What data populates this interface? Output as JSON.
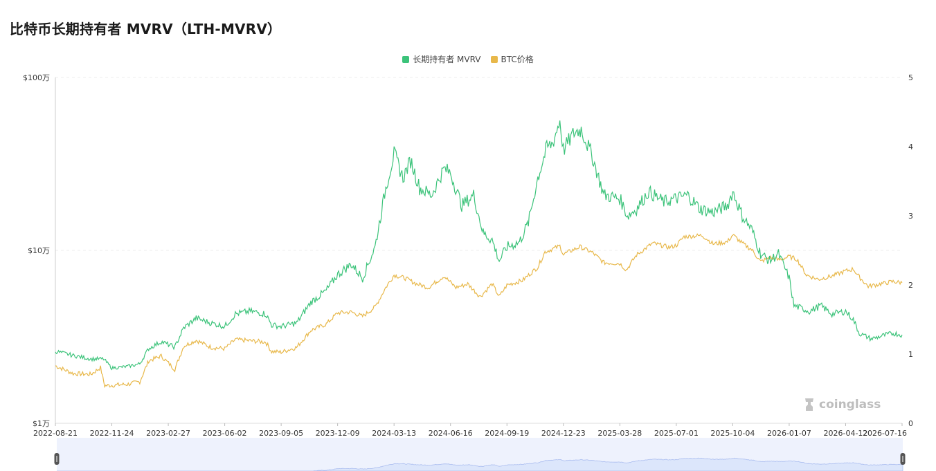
{
  "chart_data": {
    "type": "line",
    "title": "比特币长期持有者 MVRV（LTH-MVRV）",
    "legend_position": "top-center",
    "grid": true,
    "series": [
      {
        "name": "长期持有者 MVRV",
        "axis": "right",
        "color": "#3cc37a",
        "points": [
          [
            "2022-08-21",
            1.04
          ],
          [
            "2022-09-20",
            0.98
          ],
          [
            "2022-10-20",
            0.93
          ],
          [
            "2022-11-10",
            0.93
          ],
          [
            "2022-11-24",
            0.8
          ],
          [
            "2022-12-20",
            0.82
          ],
          [
            "2023-01-10",
            0.86
          ],
          [
            "2023-01-25",
            1.08
          ],
          [
            "2023-02-15",
            1.18
          ],
          [
            "2023-03-10",
            1.1
          ],
          [
            "2023-03-25",
            1.38
          ],
          [
            "2023-04-15",
            1.52
          ],
          [
            "2023-05-10",
            1.45
          ],
          [
            "2023-06-02",
            1.4
          ],
          [
            "2023-06-20",
            1.58
          ],
          [
            "2023-07-15",
            1.62
          ],
          [
            "2023-08-10",
            1.58
          ],
          [
            "2023-08-20",
            1.42
          ],
          [
            "2023-09-05",
            1.4
          ],
          [
            "2023-10-01",
            1.45
          ],
          [
            "2023-10-25",
            1.75
          ],
          [
            "2023-11-20",
            1.92
          ],
          [
            "2023-12-09",
            2.15
          ],
          [
            "2024-01-01",
            2.3
          ],
          [
            "2024-01-20",
            2.1
          ],
          [
            "2024-02-10",
            2.55
          ],
          [
            "2024-02-28",
            3.4
          ],
          [
            "2024-03-13",
            3.9
          ],
          [
            "2024-03-28",
            3.55
          ],
          [
            "2024-04-10",
            3.8
          ],
          [
            "2024-04-25",
            3.4
          ],
          [
            "2024-05-15",
            3.3
          ],
          [
            "2024-06-05",
            3.68
          ],
          [
            "2024-06-16",
            3.62
          ],
          [
            "2024-07-05",
            3.15
          ],
          [
            "2024-07-25",
            3.3
          ],
          [
            "2024-08-10",
            2.75
          ],
          [
            "2024-08-25",
            2.65
          ],
          [
            "2024-09-06",
            2.35
          ],
          [
            "2024-09-19",
            2.55
          ],
          [
            "2024-10-10",
            2.62
          ],
          [
            "2024-10-25",
            2.9
          ],
          [
            "2024-11-10",
            3.55
          ],
          [
            "2024-11-25",
            3.98
          ],
          [
            "2024-12-05",
            4.05
          ],
          [
            "2024-12-17",
            4.38
          ],
          [
            "2024-12-23",
            3.95
          ],
          [
            "2025-01-10",
            4.2
          ],
          [
            "2025-01-22",
            4.25
          ],
          [
            "2025-02-10",
            3.85
          ],
          [
            "2025-03-01",
            3.3
          ],
          [
            "2025-03-28",
            3.25
          ],
          [
            "2025-04-10",
            3.0
          ],
          [
            "2025-04-25",
            3.1
          ],
          [
            "2025-05-15",
            3.35
          ],
          [
            "2025-06-10",
            3.2
          ],
          [
            "2025-07-01",
            3.25
          ],
          [
            "2025-07-20",
            3.3
          ],
          [
            "2025-08-10",
            3.1
          ],
          [
            "2025-09-01",
            3.05
          ],
          [
            "2025-09-25",
            3.15
          ],
          [
            "2025-10-04",
            3.35
          ],
          [
            "2025-10-20",
            3.0
          ],
          [
            "2025-11-05",
            2.8
          ],
          [
            "2025-11-20",
            2.45
          ],
          [
            "2025-12-05",
            2.35
          ],
          [
            "2025-12-20",
            2.45
          ],
          [
            "2026-01-07",
            2.1
          ],
          [
            "2026-01-15",
            1.7
          ],
          [
            "2026-02-10",
            1.62
          ],
          [
            "2026-03-01",
            1.7
          ],
          [
            "2026-03-20",
            1.58
          ],
          [
            "2026-04-12",
            1.62
          ],
          [
            "2026-04-25",
            1.5
          ],
          [
            "2026-05-05",
            1.3
          ],
          [
            "2026-05-25",
            1.22
          ],
          [
            "2026-06-15",
            1.27
          ],
          [
            "2026-07-01",
            1.3
          ],
          [
            "2026-07-16",
            1.28
          ]
        ]
      },
      {
        "name": "BTC价格",
        "axis": "left",
        "color": "#e8b84a",
        "points": [
          [
            "2022-08-21",
            21500
          ],
          [
            "2022-09-20",
            19400
          ],
          [
            "2022-10-20",
            19200
          ],
          [
            "2022-11-05",
            21000
          ],
          [
            "2022-11-12",
            16500
          ],
          [
            "2022-12-20",
            16800
          ],
          [
            "2023-01-10",
            17400
          ],
          [
            "2023-01-25",
            23000
          ],
          [
            "2023-02-15",
            24500
          ],
          [
            "2023-03-10",
            20500
          ],
          [
            "2023-03-25",
            28000
          ],
          [
            "2023-04-15",
            30200
          ],
          [
            "2023-05-10",
            27500
          ],
          [
            "2023-06-02",
            27000
          ],
          [
            "2023-06-20",
            30500
          ],
          [
            "2023-07-15",
            30000
          ],
          [
            "2023-08-10",
            29500
          ],
          [
            "2023-08-20",
            26000
          ],
          [
            "2023-09-05",
            25800
          ],
          [
            "2023-10-01",
            27500
          ],
          [
            "2023-10-25",
            34500
          ],
          [
            "2023-11-20",
            37500
          ],
          [
            "2023-12-09",
            43500
          ],
          [
            "2024-01-01",
            44000
          ],
          [
            "2024-01-20",
            41500
          ],
          [
            "2024-02-10",
            47000
          ],
          [
            "2024-02-28",
            61000
          ],
          [
            "2024-03-13",
            72000
          ],
          [
            "2024-04-01",
            69000
          ],
          [
            "2024-04-20",
            64000
          ],
          [
            "2024-05-10",
            61000
          ],
          [
            "2024-06-05",
            71000
          ],
          [
            "2024-06-25",
            61000
          ],
          [
            "2024-07-15",
            64000
          ],
          [
            "2024-08-05",
            54000
          ],
          [
            "2024-08-25",
            64000
          ],
          [
            "2024-09-06",
            54000
          ],
          [
            "2024-09-19",
            63000
          ],
          [
            "2024-10-15",
            67000
          ],
          [
            "2024-11-10",
            80000
          ],
          [
            "2024-11-22",
            98000
          ],
          [
            "2024-12-17",
            106000
          ],
          [
            "2024-12-23",
            95000
          ],
          [
            "2025-01-20",
            105000
          ],
          [
            "2025-02-10",
            97000
          ],
          [
            "2025-03-01",
            85000
          ],
          [
            "2025-03-28",
            84000
          ],
          [
            "2025-04-08",
            77000
          ],
          [
            "2025-04-25",
            94000
          ],
          [
            "2025-05-22",
            110000
          ],
          [
            "2025-06-20",
            104000
          ],
          [
            "2025-07-01",
            107000
          ],
          [
            "2025-07-14",
            120000
          ],
          [
            "2025-08-14",
            122000
          ],
          [
            "2025-09-01",
            109000
          ],
          [
            "2025-09-25",
            112000
          ],
          [
            "2025-10-04",
            123000
          ],
          [
            "2025-10-20",
            110000
          ],
          [
            "2025-11-05",
            101000
          ],
          [
            "2025-11-20",
            86000
          ],
          [
            "2025-12-05",
            91000
          ],
          [
            "2025-12-20",
            88000
          ],
          [
            "2026-01-07",
            92000
          ],
          [
            "2026-01-20",
            89000
          ],
          [
            "2026-02-05",
            72000
          ],
          [
            "2026-02-25",
            68000
          ],
          [
            "2026-03-20",
            71000
          ],
          [
            "2026-04-12",
            76000
          ],
          [
            "2026-04-25",
            78000
          ],
          [
            "2026-05-05",
            70000
          ],
          [
            "2026-05-20",
            62000
          ],
          [
            "2026-06-10",
            64000
          ],
          [
            "2026-07-01",
            66000
          ],
          [
            "2026-07-16",
            65000
          ]
        ]
      }
    ],
    "y_left": {
      "scale": "log",
      "range": [
        10000,
        1000000
      ],
      "ticks": [
        "$1万",
        "$10万",
        "$100万"
      ]
    },
    "y_right": {
      "scale": "linear",
      "range": [
        0,
        5
      ],
      "ticks": [
        "0",
        "1",
        "2",
        "3",
        "4",
        "5"
      ]
    },
    "x_range": [
      "2022-08-21",
      "2026-07-16"
    ],
    "x_ticks": [
      "2022-08-21",
      "2022-11-24",
      "2023-02-27",
      "2023-06-02",
      "2023-09-05",
      "2023-12-09",
      "2024-03-13",
      "2024-06-16",
      "2024-09-19",
      "2024-12-23",
      "2025-03-28",
      "2025-07-01",
      "2025-10-04",
      "2026-01-07",
      "2026-04-12",
      "2026-07-16"
    ]
  },
  "watermark": {
    "text": "coinglass",
    "icon": "coinglass-logo-icon"
  },
  "colors": {
    "grid": "#ececec",
    "slider_fill": "#dce6fb",
    "slider_bg": "#eef2fd",
    "slider_stroke": "#a9bcef",
    "handle": "#555555"
  }
}
